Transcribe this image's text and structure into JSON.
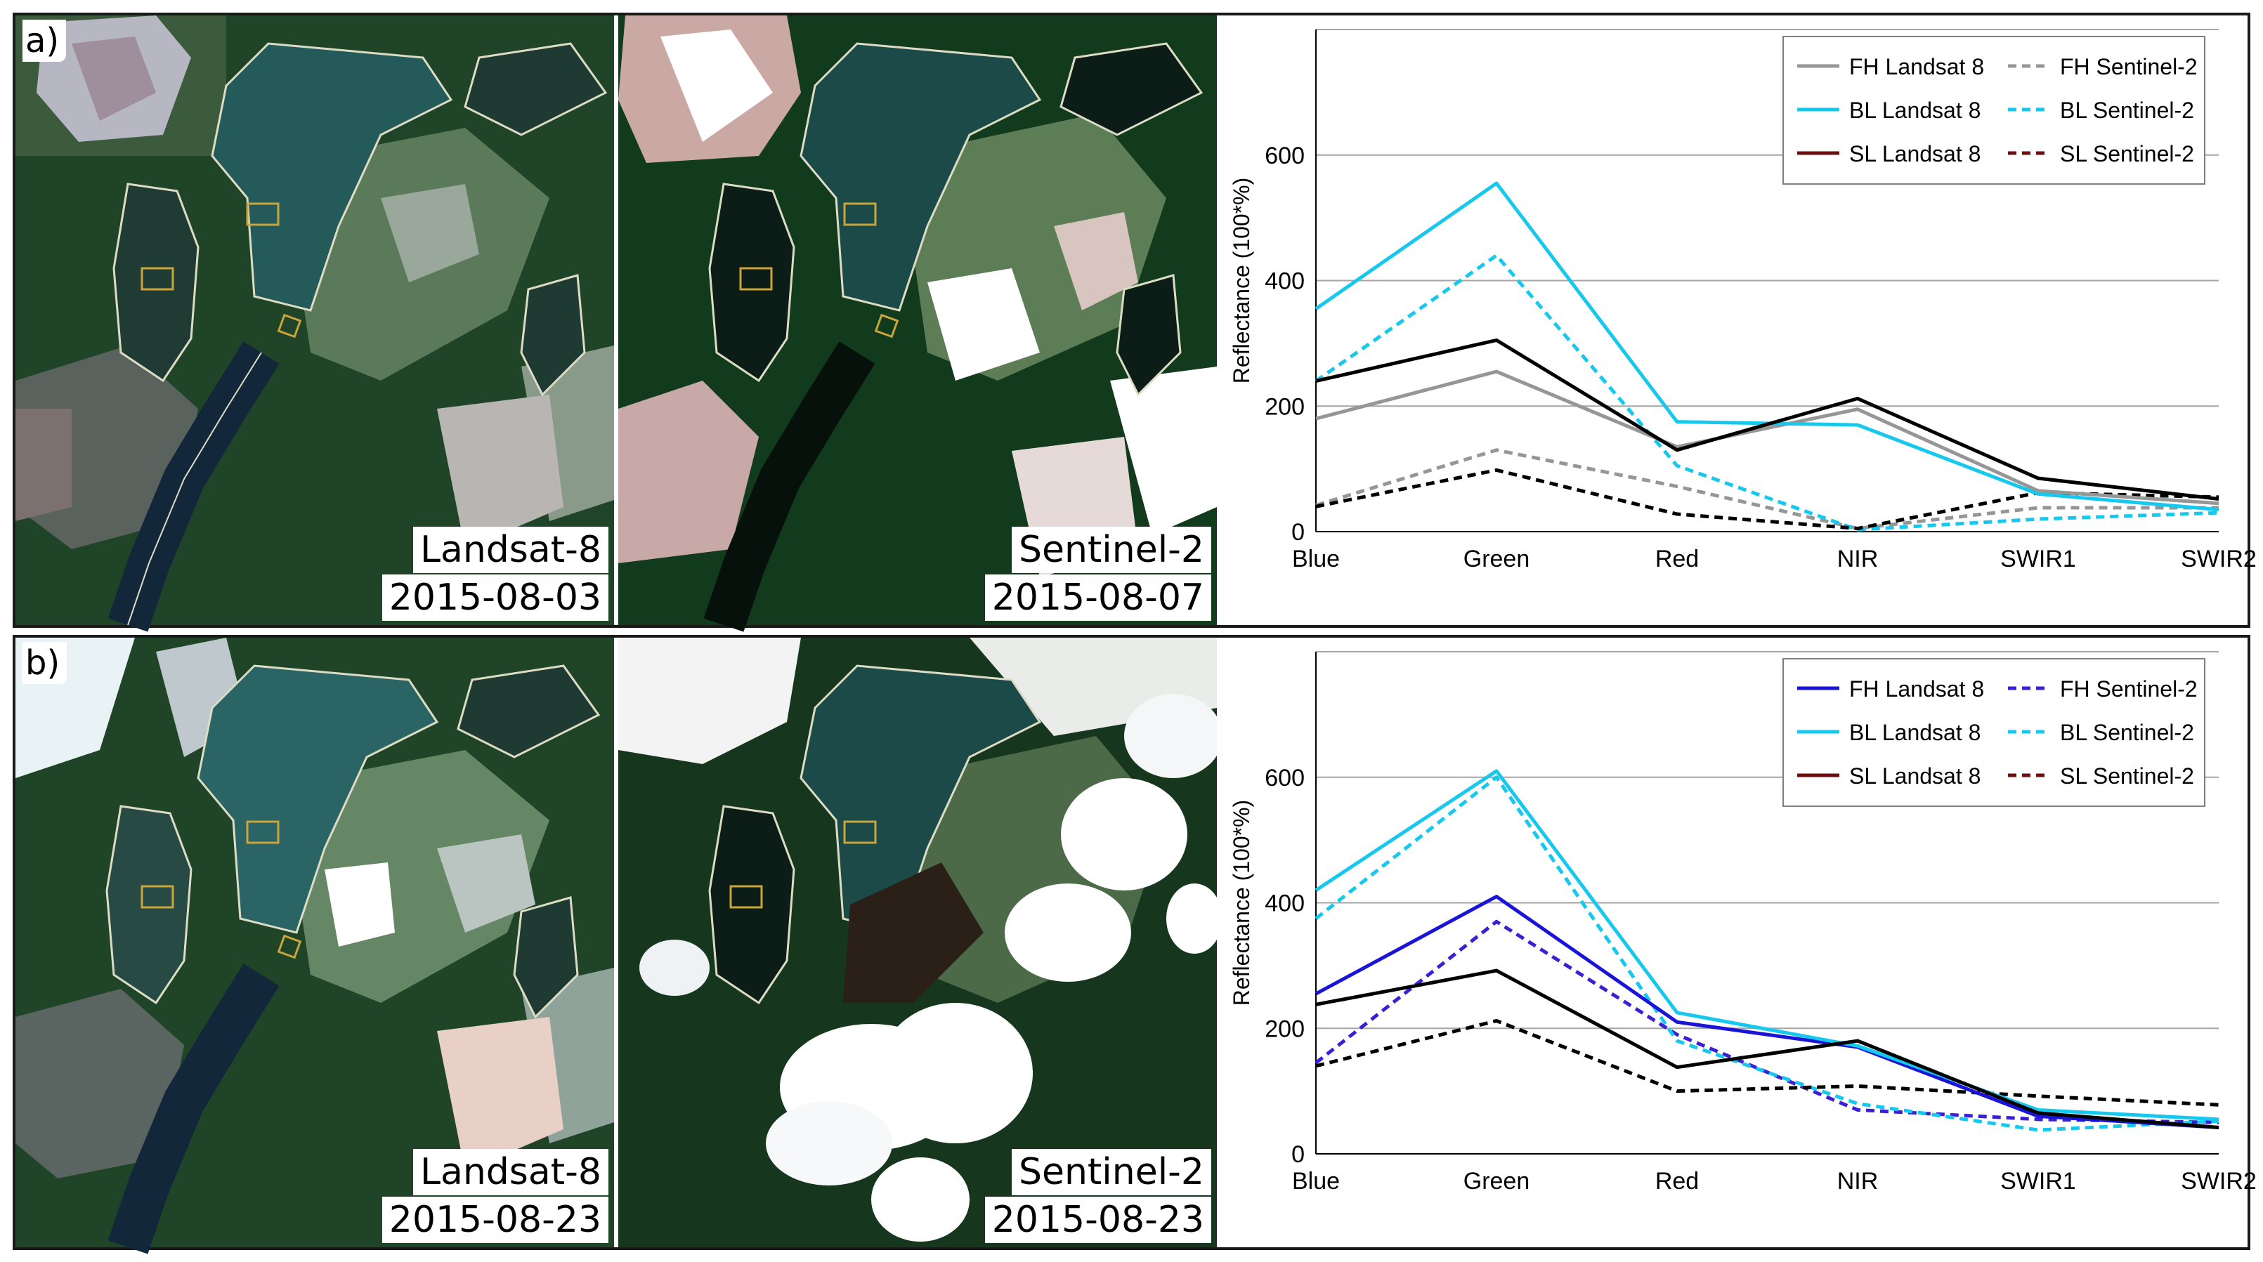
{
  "panels": [
    {
      "letter": "a)",
      "images": [
        {
          "sensor": "Landsat-8",
          "date": "2015-08-03"
        },
        {
          "sensor": "Sentinel-2",
          "date": "2015-08-07"
        }
      ]
    },
    {
      "letter": "b)",
      "images": [
        {
          "sensor": "Landsat-8",
          "date": "2015-08-23"
        },
        {
          "sensor": "Sentinel-2",
          "date": "2015-08-23"
        }
      ]
    }
  ],
  "chart_data": [
    {
      "type": "line",
      "categories": [
        "Blue",
        "Green",
        "Red",
        "NIR",
        "SWIR1",
        "SWIR2"
      ],
      "ylabel": "Reflectance  (100*%)",
      "ylim": [
        0,
        800
      ],
      "yticks": [
        0,
        200,
        400,
        600
      ],
      "grid": true,
      "legend_position": "top-right",
      "legend": [
        {
          "name": "FH Landsat 8",
          "series": 0
        },
        {
          "name": "FH Sentinel-2",
          "series": 3
        },
        {
          "name": "BL Landsat 8",
          "series": 1
        },
        {
          "name": "BL Sentinel-2",
          "series": 4
        },
        {
          "name": "SL Landsat 8",
          "series": 2,
          "color": "#6b0f0f"
        },
        {
          "name": "SL Sentinel-2",
          "series": 5,
          "color": "#6b0f0f"
        }
      ],
      "series": [
        {
          "name": "FH Landsat 8",
          "color": "#969696",
          "dash": false,
          "values": [
            180,
            255,
            135,
            195,
            65,
            45
          ]
        },
        {
          "name": "BL Landsat 8",
          "color": "#16c8ee",
          "dash": false,
          "values": [
            355,
            555,
            175,
            170,
            60,
            35
          ]
        },
        {
          "name": "SL Landsat 8",
          "color": "#000000",
          "dash": false,
          "values": [
            240,
            305,
            130,
            212,
            85,
            52
          ]
        },
        {
          "name": "FH Sentinel-2",
          "color": "#969696",
          "dash": true,
          "values": [
            42,
            130,
            72,
            5,
            38,
            38
          ]
        },
        {
          "name": "BL Sentinel-2",
          "color": "#16c8ee",
          "dash": true,
          "values": [
            240,
            440,
            105,
            3,
            20,
            30
          ]
        },
        {
          "name": "SL Sentinel-2",
          "color": "#000000",
          "dash": true,
          "values": [
            40,
            98,
            28,
            5,
            62,
            55
          ]
        }
      ]
    },
    {
      "type": "line",
      "categories": [
        "Blue",
        "Green",
        "Red",
        "NIR",
        "SWIR1",
        "SWIR2"
      ],
      "ylabel": "Reflectance  (100*%)",
      "ylim": [
        0,
        800
      ],
      "yticks": [
        0,
        200,
        400,
        600
      ],
      "grid": true,
      "legend_position": "top-right",
      "legend": [
        {
          "name": "FH Landsat 8",
          "series": 0
        },
        {
          "name": "FH Sentinel-2",
          "series": 3
        },
        {
          "name": "BL Landsat 8",
          "series": 1
        },
        {
          "name": "BL Sentinel-2",
          "series": 4
        },
        {
          "name": "SL Landsat 8",
          "series": 2,
          "color": "#6b0f0f"
        },
        {
          "name": "SL Sentinel-2",
          "series": 5,
          "color": "#6b0f0f"
        }
      ],
      "series": [
        {
          "name": "FH Landsat 8",
          "color": "#1a14d8",
          "dash": false,
          "values": [
            255,
            410,
            210,
            170,
            60,
            42
          ]
        },
        {
          "name": "BL Landsat 8",
          "color": "#16c8ee",
          "dash": false,
          "values": [
            420,
            610,
            225,
            172,
            70,
            55
          ]
        },
        {
          "name": "SL Landsat 8",
          "color": "#000000",
          "dash": false,
          "values": [
            238,
            292,
            138,
            180,
            65,
            42
          ]
        },
        {
          "name": "FH Sentinel-2",
          "color": "#3b1fd6",
          "dash": true,
          "values": [
            145,
            370,
            190,
            70,
            55,
            50
          ]
        },
        {
          "name": "BL Sentinel-2",
          "color": "#16c8ee",
          "dash": true,
          "values": [
            375,
            600,
            180,
            80,
            38,
            52
          ]
        },
        {
          "name": "SL Sentinel-2",
          "color": "#000000",
          "dash": true,
          "values": [
            140,
            212,
            100,
            108,
            92,
            78
          ]
        }
      ]
    }
  ]
}
